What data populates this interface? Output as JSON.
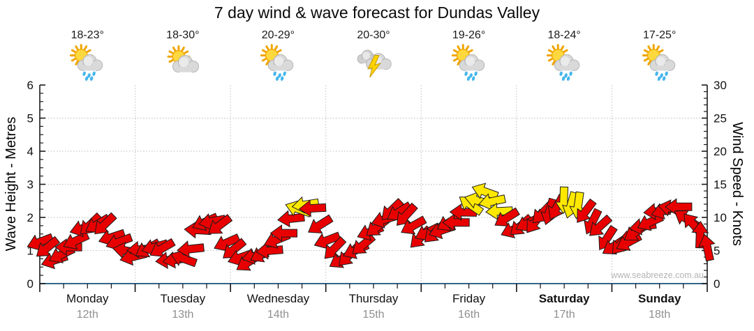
{
  "title": "7 day wind & wave forecast for Dundas Valley",
  "watermark": "www.seabreeze.com.au",
  "days": [
    {
      "name": "Monday",
      "date": "12th",
      "temp": "18-23°",
      "icon": "sun-cloud-rain",
      "bold": false
    },
    {
      "name": "Tuesday",
      "date": "13th",
      "temp": "18-30°",
      "icon": "sun-cloud",
      "bold": false
    },
    {
      "name": "Wednesday",
      "date": "14th",
      "temp": "20-29°",
      "icon": "sun-cloud-rain",
      "bold": false
    },
    {
      "name": "Thursday",
      "date": "15th",
      "temp": "20-30°",
      "icon": "storm",
      "bold": false
    },
    {
      "name": "Friday",
      "date": "16th",
      "temp": "19-26°",
      "icon": "sun-cloud-rain",
      "bold": false
    },
    {
      "name": "Saturday",
      "date": "17th",
      "temp": "18-24°",
      "icon": "sun-cloud-rain",
      "bold": true
    },
    {
      "name": "Sunday",
      "date": "18th",
      "temp": "17-25°",
      "icon": "sun-cloud-rain",
      "bold": true
    }
  ],
  "left_axis": {
    "label": "Wave Height - Metres",
    "ticks": [
      0,
      1,
      2,
      3,
      4,
      5,
      6
    ],
    "range": [
      0,
      6
    ]
  },
  "right_axis": {
    "label": "Wind Speed - Knots",
    "ticks": [
      0,
      5,
      10,
      15,
      20,
      25,
      30
    ],
    "range": [
      0,
      30
    ]
  },
  "colors": {
    "arrow_normal": "#e80000",
    "arrow_strong": "#ffe800",
    "arrow_outline": "#1c1c1c",
    "bottom_axis": "#336688",
    "side_axis": "#1a1a1a",
    "gridline": "#bdbdbd",
    "date_text": "#8f8f8f",
    "watermark_text": "#b3b3b3"
  },
  "chart_data": {
    "type": "line",
    "title": "7 day wind & wave forecast for Dundas Valley",
    "note": "wind speed drawn as overlapping direction arrows; x in days from Monday 12th 00:00",
    "x_categories": [
      "Monday 12th",
      "Tuesday 13th",
      "Wednesday 14th",
      "Thursday 15th",
      "Friday 16th",
      "Saturday 17th",
      "Sunday 18th"
    ],
    "y_left": {
      "label": "Wave Height - Metres",
      "range": [
        0,
        6
      ]
    },
    "y_right": {
      "label": "Wind Speed - Knots",
      "range": [
        0,
        30
      ]
    },
    "grid": {
      "horizontal_at_metres": [
        1,
        2,
        3,
        4,
        5
      ],
      "vertical_at_day_boundaries": [
        1,
        2,
        3,
        4,
        5,
        6
      ],
      "style": "dotted"
    },
    "series": [
      {
        "name": "Wind speed (knots)",
        "points": [
          [
            0.0,
            6.5
          ],
          [
            0.08,
            5.0
          ],
          [
            0.18,
            3.5
          ],
          [
            0.3,
            5.5
          ],
          [
            0.42,
            7.5
          ],
          [
            0.55,
            9.3
          ],
          [
            0.65,
            9.0
          ],
          [
            0.78,
            7.0
          ],
          [
            0.9,
            5.0
          ],
          [
            1.0,
            4.2
          ],
          [
            1.1,
            5.2
          ],
          [
            1.22,
            5.8
          ],
          [
            1.35,
            4.0
          ],
          [
            1.48,
            3.2
          ],
          [
            1.6,
            6.0
          ],
          [
            1.7,
            9.0
          ],
          [
            1.78,
            10.0
          ],
          [
            1.88,
            8.5
          ],
          [
            2.0,
            5.5
          ],
          [
            2.1,
            4.0
          ],
          [
            2.22,
            3.3
          ],
          [
            2.32,
            4.5
          ],
          [
            2.45,
            5.5
          ],
          [
            2.6,
            9.0
          ],
          [
            2.72,
            11.5
          ],
          [
            2.8,
            12.4
          ],
          [
            2.9,
            10.0
          ],
          [
            3.0,
            7.0
          ],
          [
            3.08,
            5.0
          ],
          [
            3.2,
            3.6
          ],
          [
            3.35,
            5.5
          ],
          [
            3.5,
            8.0
          ],
          [
            3.65,
            10.5
          ],
          [
            3.78,
            11.3
          ],
          [
            3.9,
            9.0
          ],
          [
            4.0,
            7.0
          ],
          [
            4.1,
            7.5
          ],
          [
            4.25,
            8.5
          ],
          [
            4.4,
            10.0
          ],
          [
            4.55,
            12.5
          ],
          [
            4.68,
            13.6
          ],
          [
            4.8,
            11.5
          ],
          [
            4.92,
            9.0
          ],
          [
            5.0,
            8.3
          ],
          [
            5.1,
            9.0
          ],
          [
            5.25,
            10.0
          ],
          [
            5.4,
            11.5
          ],
          [
            5.52,
            12.5
          ],
          [
            5.62,
            12.0
          ],
          [
            5.75,
            10.5
          ],
          [
            5.88,
            8.0
          ],
          [
            6.0,
            6.0
          ],
          [
            6.08,
            5.5
          ],
          [
            6.2,
            7.0
          ],
          [
            6.35,
            9.0
          ],
          [
            6.5,
            10.8
          ],
          [
            6.62,
            11.6
          ],
          [
            6.72,
            11.2
          ],
          [
            6.82,
            9.5
          ],
          [
            6.92,
            7.5
          ],
          [
            7.0,
            5.8
          ]
        ]
      }
    ],
    "arrow_angles_deg": [
      [
        0.0,
        150
      ],
      [
        0.3,
        165
      ],
      [
        0.6,
        140
      ],
      [
        0.9,
        175
      ],
      [
        1.2,
        155
      ],
      [
        1.5,
        185
      ],
      [
        1.8,
        160
      ],
      [
        2.1,
        145
      ],
      [
        2.4,
        165
      ],
      [
        2.7,
        185
      ],
      [
        3.0,
        150
      ],
      [
        3.3,
        140
      ],
      [
        3.6,
        155
      ],
      [
        3.9,
        135
      ],
      [
        4.2,
        150
      ],
      [
        4.55,
        205
      ],
      [
        4.8,
        170
      ],
      [
        5.1,
        140
      ],
      [
        5.4,
        110
      ],
      [
        5.6,
        100
      ],
      [
        5.9,
        130
      ],
      [
        6.2,
        150
      ],
      [
        6.5,
        165
      ],
      [
        6.75,
        200
      ],
      [
        6.9,
        255
      ],
      [
        7.0,
        262
      ]
    ],
    "strong_wind_segments_days": [
      [
        2.7,
        2.84
      ],
      [
        4.5,
        4.85
      ],
      [
        5.42,
        5.68
      ]
    ]
  }
}
